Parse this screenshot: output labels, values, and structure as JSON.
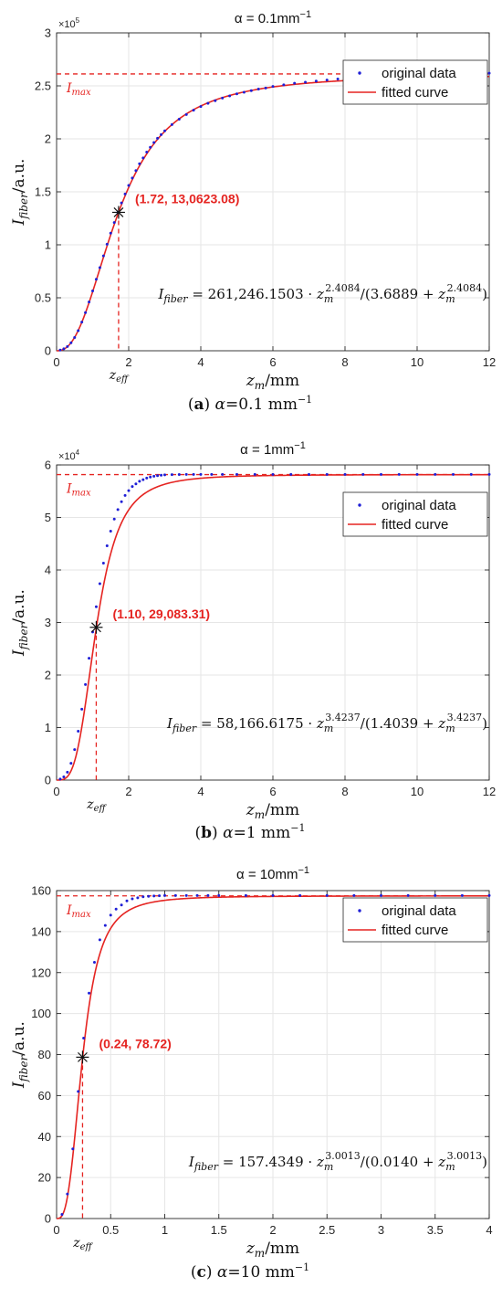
{
  "colors": {
    "data_points": "#1f1fd6",
    "fit": "#e52421",
    "annot": "#e52421",
    "grid": "#e6e6e6",
    "axis": "#262626"
  },
  "chart_data": [
    {
      "type": "line",
      "title": "α = 0.1mm",
      "title_sup": "−1",
      "ylabel_main": "I",
      "ylabel_sub": "fiber",
      "ylabel_unit": "/a.u.",
      "xlabel_main": "z",
      "xlabel_sub": "m",
      "xlabel_unit": "/mm",
      "xlim": [
        0,
        12
      ],
      "ylim": [
        0,
        300000
      ],
      "xticks": [
        0,
        2,
        4,
        6,
        8,
        10,
        12
      ],
      "yticks": [
        0,
        50000,
        100000,
        150000,
        200000,
        250000,
        300000
      ],
      "ytick_labels": [
        "0",
        "0.5",
        "1",
        "1.5",
        "2",
        "2.5",
        "3"
      ],
      "y_exponent_base": "×10",
      "y_exponent_power": "5",
      "imax_main": "I",
      "imax_sub": "max",
      "zeff_main": "z",
      "zeff_sub": "eff",
      "legend": [
        "original data",
        "fitted curve"
      ],
      "legend_position": "top-right",
      "grid": true,
      "fit": {
        "Imax": 261246.1503,
        "n": 2.4084,
        "K": 3.6889
      },
      "marked_point": {
        "x": 1.72,
        "y": 130623.08,
        "label": "(1.72, 13,0623.08)"
      },
      "equation": {
        "lhs_main": "I",
        "lhs_sub": "fiber",
        "rhs_coef": " = 261,246.1503 · ",
        "base": "z",
        "base_sub": "m",
        "power": "2.4084",
        "mid": "/(3.6889 + ",
        "power2": "2.4084",
        "close": ")"
      },
      "original_data": {
        "x": [
          0.1,
          0.2,
          0.3,
          0.4,
          0.5,
          0.6,
          0.7,
          0.8,
          0.9,
          1.0,
          1.1,
          1.2,
          1.3,
          1.4,
          1.5,
          1.6,
          1.7,
          1.8,
          1.9,
          2.0,
          2.1,
          2.2,
          2.3,
          2.4,
          2.5,
          2.6,
          2.7,
          2.8,
          2.9,
          3.0,
          3.2,
          3.4,
          3.6,
          3.8,
          4.0,
          4.2,
          4.4,
          4.6,
          4.8,
          5.0,
          5.2,
          5.4,
          5.6,
          5.8,
          6.0,
          6.3,
          6.6,
          6.9,
          7.2,
          7.5,
          7.8,
          8.1,
          8.4,
          8.7,
          9.0,
          9.3,
          9.6,
          9.9,
          10.2,
          10.5,
          10.8,
          11.1,
          11.4,
          11.7,
          12.0
        ],
        "y": [
          700,
          1800,
          4000,
          7500,
          12500,
          19000,
          27000,
          36000,
          46000,
          56500,
          67500,
          78500,
          89500,
          100500,
          111000,
          121000,
          130500,
          139500,
          148000,
          156000,
          163000,
          170000,
          176500,
          182000,
          187500,
          192000,
          196500,
          200500,
          204000,
          207500,
          213500,
          218500,
          223000,
          227000,
          230500,
          233500,
          236000,
          238500,
          240500,
          242500,
          244000,
          245500,
          247000,
          248000,
          249500,
          251000,
          252500,
          253500,
          254500,
          255500,
          256500,
          257000,
          257700,
          258300,
          258800,
          259300,
          259700,
          260100,
          260500,
          260800,
          261100,
          261400,
          261600,
          261800,
          262000
        ]
      }
    },
    {
      "type": "line",
      "title": "α = 1mm",
      "title_sup": "−1",
      "ylabel_main": "I",
      "ylabel_sub": "fiber",
      "ylabel_unit": "/a.u.",
      "xlabel_main": "z",
      "xlabel_sub": "m",
      "xlabel_unit": "/mm",
      "xlim": [
        0,
        12
      ],
      "ylim": [
        0,
        60000
      ],
      "xticks": [
        0,
        2,
        4,
        6,
        8,
        10,
        12
      ],
      "yticks": [
        0,
        10000,
        20000,
        30000,
        40000,
        50000,
        60000
      ],
      "ytick_labels": [
        "0",
        "1",
        "2",
        "3",
        "4",
        "5",
        "6"
      ],
      "y_exponent_base": "×10",
      "y_exponent_power": "4",
      "imax_main": "I",
      "imax_sub": "max",
      "zeff_main": "z",
      "zeff_sub": "eff",
      "legend": [
        "original data",
        "fitted curve"
      ],
      "legend_position": "top-right",
      "grid": true,
      "fit": {
        "Imax": 58166.6175,
        "n": 3.4237,
        "K": 1.4039
      },
      "marked_point": {
        "x": 1.1,
        "y": 29083.31,
        "label": "(1.10,  29,083.31)"
      },
      "equation": {
        "lhs_main": "I",
        "lhs_sub": "fiber",
        "rhs_coef": " = 58,166.6175 · ",
        "base": "z",
        "base_sub": "m",
        "power": "3.4237",
        "mid": "/(1.4039 + ",
        "power2": "3.4237",
        "close": ")"
      },
      "original_data": {
        "x": [
          0.1,
          0.2,
          0.3,
          0.4,
          0.5,
          0.6,
          0.7,
          0.8,
          0.9,
          1.0,
          1.1,
          1.2,
          1.3,
          1.4,
          1.5,
          1.6,
          1.7,
          1.8,
          1.9,
          2.0,
          2.1,
          2.2,
          2.3,
          2.4,
          2.5,
          2.6,
          2.7,
          2.8,
          2.9,
          3.0,
          3.2,
          3.4,
          3.6,
          3.8,
          4.0,
          4.3,
          4.6,
          5.0,
          5.5,
          6.0,
          6.5,
          7.0,
          7.5,
          8.0,
          8.5,
          9.0,
          9.5,
          10.0,
          10.5,
          11.0,
          11.5,
          12.0
        ],
        "y": [
          200,
          600,
          1500,
          3200,
          5800,
          9300,
          13500,
          18200,
          23200,
          28200,
          33000,
          37400,
          41300,
          44600,
          47400,
          49700,
          51500,
          53000,
          54200,
          55100,
          55900,
          56400,
          56900,
          57200,
          57500,
          57700,
          57850,
          57950,
          58050,
          58100,
          58150,
          58180,
          58200,
          58200,
          58200,
          58200,
          58200,
          58200,
          58200,
          58200,
          58200,
          58200,
          58200,
          58200,
          58200,
          58200,
          58200,
          58200,
          58200,
          58200,
          58200,
          58200
        ]
      }
    },
    {
      "type": "line",
      "title": "α = 10mm",
      "title_sup": "−1",
      "ylabel_main": "I",
      "ylabel_sub": "fiber",
      "ylabel_unit": "/a.u.",
      "xlabel_main": "z",
      "xlabel_sub": "m",
      "xlabel_unit": "/mm",
      "xlim": [
        0,
        4
      ],
      "ylim": [
        0,
        160
      ],
      "xticks": [
        0,
        0.5,
        1,
        1.5,
        2,
        2.5,
        3,
        3.5,
        4
      ],
      "yticks": [
        0,
        20,
        40,
        60,
        80,
        100,
        120,
        140,
        160
      ],
      "ytick_labels": [
        "0",
        "20",
        "40",
        "60",
        "80",
        "100",
        "120",
        "140",
        "160"
      ],
      "y_exponent_base": "",
      "y_exponent_power": "",
      "imax_main": "I",
      "imax_sub": "max",
      "zeff_main": "z",
      "zeff_sub": "eff",
      "legend": [
        "original data",
        "fitted curve"
      ],
      "legend_position": "top-right",
      "grid": true,
      "fit": {
        "Imax": 157.4349,
        "n": 3.0013,
        "K": 0.014
      },
      "marked_point": {
        "x": 0.24,
        "y": 78.72,
        "label": "(0.24, 78.72)"
      },
      "equation": {
        "lhs_main": "I",
        "lhs_sub": "fiber",
        "rhs_coef": " = 157.4349 · ",
        "base": "z",
        "base_sub": "m",
        "power": "3.0013",
        "mid": "/(0.0140 + ",
        "power2": "3.0013",
        "close": ")"
      },
      "original_data": {
        "x": [
          0.05,
          0.1,
          0.15,
          0.2,
          0.25,
          0.3,
          0.35,
          0.4,
          0.45,
          0.5,
          0.55,
          0.6,
          0.65,
          0.7,
          0.75,
          0.8,
          0.85,
          0.9,
          0.95,
          1.0,
          1.1,
          1.2,
          1.3,
          1.4,
          1.5,
          1.75,
          2.0,
          2.25,
          2.5,
          2.75,
          3.0,
          3.25,
          3.5,
          3.75,
          4.0
        ],
        "y": [
          2,
          12,
          34,
          62,
          88,
          110,
          125,
          136,
          143,
          148,
          151,
          153,
          155,
          156,
          156.5,
          157,
          157.2,
          157.4,
          157.5,
          157.6,
          157.6,
          157.6,
          157.6,
          157.6,
          157.6,
          157.6,
          157.6,
          157.6,
          157.6,
          157.6,
          157.6,
          157.6,
          157.6,
          157.6,
          157.6
        ]
      }
    }
  ],
  "captions": [
    {
      "letter": "a",
      "greek": "α",
      "value": "=0.1 mm",
      "sup": "−1"
    },
    {
      "letter": "b",
      "greek": "α",
      "value": "=1 mm",
      "sup": "−1"
    },
    {
      "letter": "c",
      "greek": "α",
      "value": "=10 mm",
      "sup": "−1"
    }
  ]
}
